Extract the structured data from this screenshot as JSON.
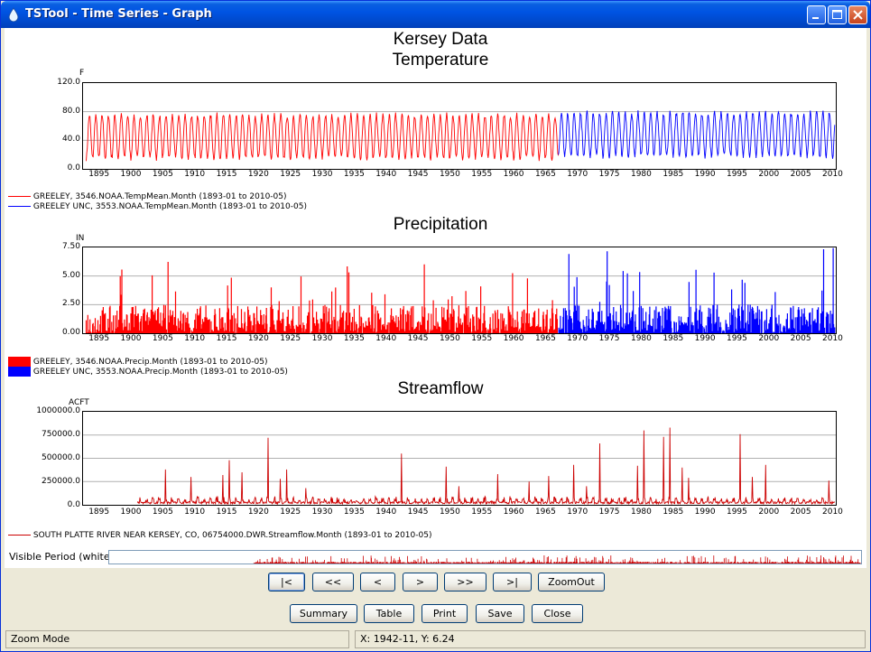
{
  "window": {
    "title": "TSTool - Time Series - Graph"
  },
  "graph": {
    "title_line1": "Kersey Data",
    "title_line2": "Temperature",
    "x_ticks": [
      "1895",
      "1900",
      "1905",
      "1910",
      "1915",
      "1920",
      "1925",
      "1930",
      "1935",
      "1940",
      "1945",
      "1950",
      "1955",
      "1960",
      "1965",
      "1970",
      "1975",
      "1980",
      "1985",
      "1990",
      "1995",
      "2000",
      "2005",
      "2010"
    ]
  },
  "chart_data": [
    {
      "type": "line",
      "title": "Temperature",
      "ylabel": "F",
      "y_ticks": [
        "120.0",
        "80.0",
        "40.0",
        "0.0"
      ],
      "ylim": [
        0,
        120
      ],
      "xlim": [
        1892.5,
        2010.5
      ],
      "grid": true,
      "series": [
        {
          "name": "GREELEY, 3546.NOAA.TempMean.Month (1893-01 to 2010-05)",
          "color": "#ff0000",
          "range": [
            1893.0,
            1967.0
          ],
          "approx_min": 15,
          "approx_max": 75
        },
        {
          "name": "GREELEY UNC, 3553.NOAA.TempMean.Month (1893-01 to 2010-05)",
          "color": "#0000ff",
          "range": [
            1967.0,
            2010.4
          ],
          "approx_min": 18,
          "approx_max": 78
        }
      ]
    },
    {
      "type": "bar",
      "title": "Precipitation",
      "ylabel": "IN",
      "y_ticks": [
        "7.50",
        "5.00",
        "2.50",
        "0.00"
      ],
      "ylim": [
        0,
        7.5
      ],
      "xlim": [
        1892.5,
        2010.5
      ],
      "grid": true,
      "series": [
        {
          "name": "GREELEY, 3546.NOAA.Precip.Month (1893-01 to 2010-05)",
          "color": "#ff0000",
          "range": [
            1893.0,
            1967.0
          ],
          "approx_max": 6.3
        },
        {
          "name": "GREELEY UNC, 3553.NOAA.Precip.Month (1893-01 to 2010-05)",
          "color": "#0000ff",
          "range": [
            1967.0,
            2010.4
          ],
          "approx_max": 7.5
        }
      ]
    },
    {
      "type": "line",
      "title": "Streamflow",
      "ylabel": "ACFT",
      "y_ticks": [
        "1000000.0",
        "750000.0",
        "500000.0",
        "250000.0",
        "0.0"
      ],
      "ylim": [
        0,
        1000000
      ],
      "xlim": [
        1892.5,
        2010.5
      ],
      "grid": true,
      "series": [
        {
          "name": "SOUTH PLATTE RIVER NEAR KERSEY, CO, 06754000.DWR.Streamflow.Month (1893-01 to 2010-05)",
          "color": "#cc0000",
          "range": [
            1901.0,
            2010.4
          ],
          "peaks": [
            [
              1905.4,
              380000
            ],
            [
              1909.4,
              300000
            ],
            [
              1914.4,
              320000
            ],
            [
              1915.4,
              480000
            ],
            [
              1917.4,
              350000
            ],
            [
              1921.5,
              720000
            ],
            [
              1923.4,
              280000
            ],
            [
              1924.4,
              380000
            ],
            [
              1927.4,
              180000
            ],
            [
              1942.4,
              550000
            ],
            [
              1949.4,
              410000
            ],
            [
              1951.4,
              200000
            ],
            [
              1957.5,
              330000
            ],
            [
              1962.4,
              250000
            ],
            [
              1965.5,
              310000
            ],
            [
              1969.4,
              430000
            ],
            [
              1971.4,
              200000
            ],
            [
              1973.5,
              660000
            ],
            [
              1979.4,
              420000
            ],
            [
              1980.4,
              800000
            ],
            [
              1983.5,
              730000
            ],
            [
              1984.5,
              830000
            ],
            [
              1986.4,
              400000
            ],
            [
              1987.4,
              290000
            ],
            [
              1995.5,
              760000
            ],
            [
              1997.4,
              300000
            ],
            [
              1999.5,
              430000
            ],
            [
              2009.4,
              260000
            ]
          ]
        }
      ]
    }
  ],
  "visible_period": {
    "label": "Visible Period (white):"
  },
  "nav_buttons": [
    "|<",
    "<<",
    "<",
    ">",
    ">>",
    ">|",
    "ZoomOut"
  ],
  "action_buttons": [
    "Summary",
    "Table",
    "Print",
    "Save",
    "Close"
  ],
  "status": {
    "mode": "Zoom Mode",
    "coords": "X:  1942-11,  Y:  6.24"
  }
}
